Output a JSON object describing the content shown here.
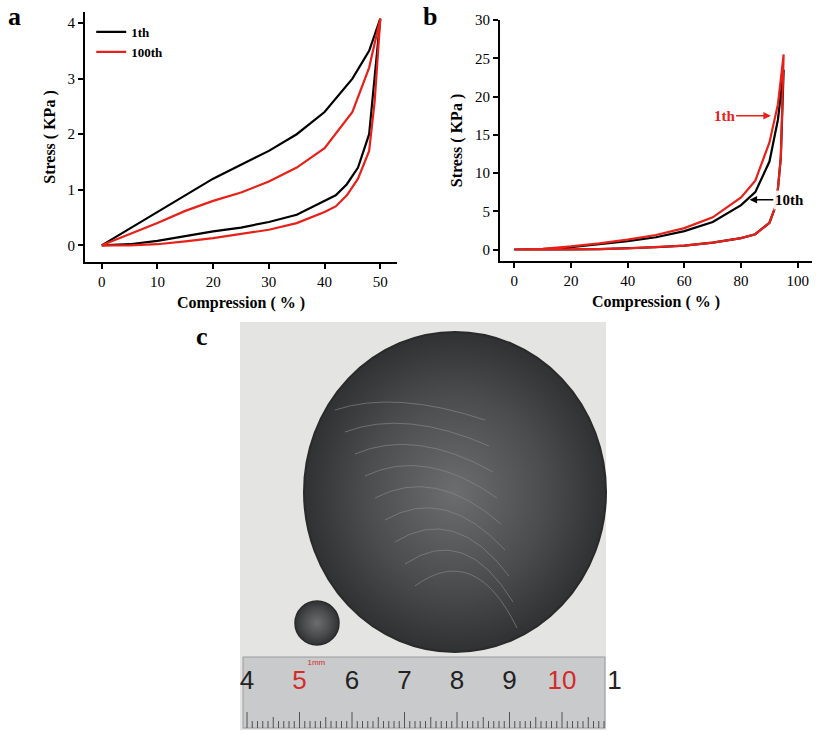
{
  "chart_data": [
    {
      "panel": "a",
      "type": "line",
      "x_label": "Compression ( % )",
      "y_label": "Stress ( KPa )",
      "x": [
        0,
        5,
        10,
        15,
        20,
        25,
        30,
        35,
        40,
        45,
        48,
        50,
        49,
        48,
        46,
        44,
        42,
        40,
        35,
        30,
        25,
        20,
        15,
        10,
        5,
        0
      ],
      "series": [
        {
          "name": "1th",
          "color": "#000000",
          "values": [
            0,
            0.3,
            0.6,
            0.9,
            1.2,
            1.45,
            1.7,
            2.0,
            2.4,
            3.0,
            3.5,
            4.08,
            3.0,
            2.0,
            1.4,
            1.1,
            0.9,
            0.8,
            0.55,
            0.42,
            0.32,
            0.25,
            0.17,
            0.08,
            0.02,
            0
          ]
        },
        {
          "name": "100th",
          "color": "#e8201a",
          "values": [
            0,
            0.2,
            0.4,
            0.62,
            0.8,
            0.95,
            1.15,
            1.4,
            1.75,
            2.4,
            3.2,
            4.08,
            2.6,
            1.7,
            1.2,
            0.9,
            0.7,
            0.6,
            0.4,
            0.28,
            0.2,
            0.13,
            0.07,
            0.02,
            0,
            0
          ]
        }
      ],
      "xlim": [
        -3,
        53
      ],
      "xticks": [
        0,
        10,
        20,
        30,
        40,
        50
      ],
      "ylim": [
        -0.3,
        4.2
      ],
      "yticks": [
        0,
        1,
        2,
        3,
        4
      ],
      "legend": "top left"
    },
    {
      "panel": "b",
      "type": "line",
      "x_label": "Compression ( % )",
      "y_label": "Stress ( KPa )",
      "x": [
        0,
        10,
        20,
        30,
        40,
        50,
        60,
        70,
        80,
        85,
        90,
        93,
        95,
        94,
        93,
        92,
        90,
        85,
        80,
        70,
        60,
        50,
        40,
        30,
        20,
        10,
        0
      ],
      "series": [
        {
          "name": "10th",
          "color": "#000000",
          "values": [
            0,
            0.05,
            0.3,
            0.7,
            1.1,
            1.6,
            2.4,
            3.6,
            5.8,
            7.5,
            11.5,
            17,
            23.5,
            12,
            8,
            5.5,
            3.5,
            2.0,
            1.5,
            0.9,
            0.5,
            0.3,
            0.15,
            0.05,
            0,
            0,
            0
          ]
        },
        {
          "name": "1th",
          "color": "#e8201a",
          "values": [
            0,
            0.1,
            0.4,
            0.8,
            1.3,
            1.9,
            2.8,
            4.2,
            6.8,
            9,
            14,
            19,
            25.5,
            12,
            8,
            5.5,
            3.5,
            2.0,
            1.5,
            0.9,
            0.5,
            0.3,
            0.15,
            0.05,
            0,
            0,
            0
          ]
        }
      ],
      "xlim": [
        -5,
        105
      ],
      "xticks": [
        0,
        20,
        40,
        60,
        80,
        100
      ],
      "ylim": [
        -1.5,
        30
      ],
      "yticks": [
        0,
        5,
        10,
        15,
        20,
        25,
        30
      ],
      "annotations": [
        {
          "text": "1th",
          "color": "#e8201a",
          "x": 90.5,
          "y": 17.5,
          "text_x": 74,
          "text_y": 17.5
        },
        {
          "text": "10th",
          "color": "#000000",
          "x": 83,
          "y": 6.5,
          "text_x": 97,
          "text_y": 6.5
        }
      ]
    }
  ],
  "photo": {
    "panel": "c",
    "unit": "1mm",
    "ruler": [
      {
        "label": "4",
        "color": "#222222"
      },
      {
        "label": "5",
        "color": "#d42a2a"
      },
      {
        "label": "6",
        "color": "#222222"
      },
      {
        "label": "7",
        "color": "#222222"
      },
      {
        "label": "8",
        "color": "#222222"
      },
      {
        "label": "9",
        "color": "#222222"
      },
      {
        "label": "10",
        "color": "#d42a2a"
      },
      {
        "label": "1",
        "color": "#222222"
      }
    ]
  }
}
